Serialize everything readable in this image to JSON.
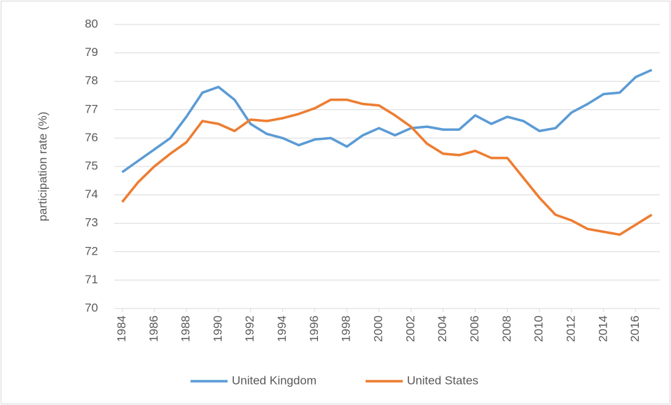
{
  "chart_data": {
    "type": "line",
    "y_label": "participation rate (%)",
    "x": [
      1984,
      1985,
      1986,
      1987,
      1988,
      1989,
      1990,
      1991,
      1992,
      1993,
      1994,
      1995,
      1996,
      1997,
      1998,
      1999,
      2000,
      2001,
      2002,
      2003,
      2004,
      2005,
      2006,
      2007,
      2008,
      2009,
      2010,
      2011,
      2012,
      2013,
      2014,
      2015,
      2016,
      2017
    ],
    "series": [
      {
        "name": "United Kingdom",
        "color": "#5b9bd5",
        "values": [
          74.8,
          75.2,
          75.6,
          76.0,
          76.75,
          77.6,
          77.8,
          77.35,
          76.5,
          76.15,
          76.0,
          75.75,
          75.95,
          76.0,
          75.7,
          76.1,
          76.35,
          76.1,
          76.35,
          76.4,
          76.3,
          76.3,
          76.8,
          76.5,
          76.75,
          76.6,
          76.25,
          76.35,
          76.9,
          77.2,
          77.55,
          77.6,
          78.15,
          78.4
        ]
      },
      {
        "name": "United States",
        "color": "#ed7d31",
        "values": [
          73.75,
          74.45,
          75.0,
          75.45,
          75.85,
          76.6,
          76.5,
          76.25,
          76.65,
          76.6,
          76.7,
          76.85,
          77.05,
          77.35,
          77.35,
          77.2,
          77.15,
          76.8,
          76.4,
          75.8,
          75.45,
          75.4,
          75.55,
          75.3,
          75.3,
          74.6,
          73.9,
          73.3,
          73.1,
          72.8,
          72.7,
          72.6,
          72.95,
          73.3
        ]
      }
    ],
    "xlim": [
      1983.5,
      2017.5
    ],
    "xticks": [
      1984,
      1986,
      1988,
      1990,
      1992,
      1994,
      1996,
      1998,
      2000,
      2002,
      2004,
      2006,
      2008,
      2010,
      2012,
      2014,
      2016
    ],
    "ylim": [
      70,
      80
    ],
    "yticks": [
      70,
      71,
      72,
      73,
      74,
      75,
      76,
      77,
      78,
      79,
      80
    ],
    "grid": true,
    "legend": "bottom"
  }
}
